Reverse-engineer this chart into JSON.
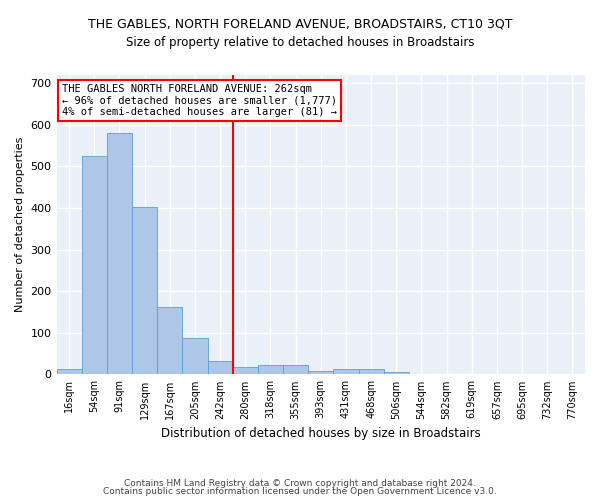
{
  "title": "THE GABLES, NORTH FORELAND AVENUE, BROADSTAIRS, CT10 3QT",
  "subtitle": "Size of property relative to detached houses in Broadstairs",
  "xlabel": "Distribution of detached houses by size in Broadstairs",
  "ylabel": "Number of detached properties",
  "categories": [
    "16sqm",
    "54sqm",
    "91sqm",
    "129sqm",
    "167sqm",
    "205sqm",
    "242sqm",
    "280sqm",
    "318sqm",
    "355sqm",
    "393sqm",
    "431sqm",
    "468sqm",
    "506sqm",
    "544sqm",
    "582sqm",
    "619sqm",
    "657sqm",
    "695sqm",
    "732sqm",
    "770sqm"
  ],
  "values": [
    13,
    525,
    580,
    402,
    162,
    88,
    32,
    17,
    22,
    22,
    8,
    12,
    12,
    5,
    0,
    0,
    0,
    0,
    0,
    0,
    0
  ],
  "bar_color": "#aec6e8",
  "bar_edgecolor": "#5a9fd4",
  "vline_color": "red",
  "annotation_title": "THE GABLES NORTH FORELAND AVENUE: 262sqm",
  "annotation_line1": "← 96% of detached houses are smaller (1,777)",
  "annotation_line2": "4% of semi-detached houses are larger (81) →",
  "ylim": [
    0,
    720
  ],
  "yticks": [
    0,
    100,
    200,
    300,
    400,
    500,
    600,
    700
  ],
  "bg_color": "#eaf0f8",
  "grid_color": "white",
  "footnote1": "Contains HM Land Registry data © Crown copyright and database right 2024.",
  "footnote2": "Contains public sector information licensed under the Open Government Licence v3.0."
}
